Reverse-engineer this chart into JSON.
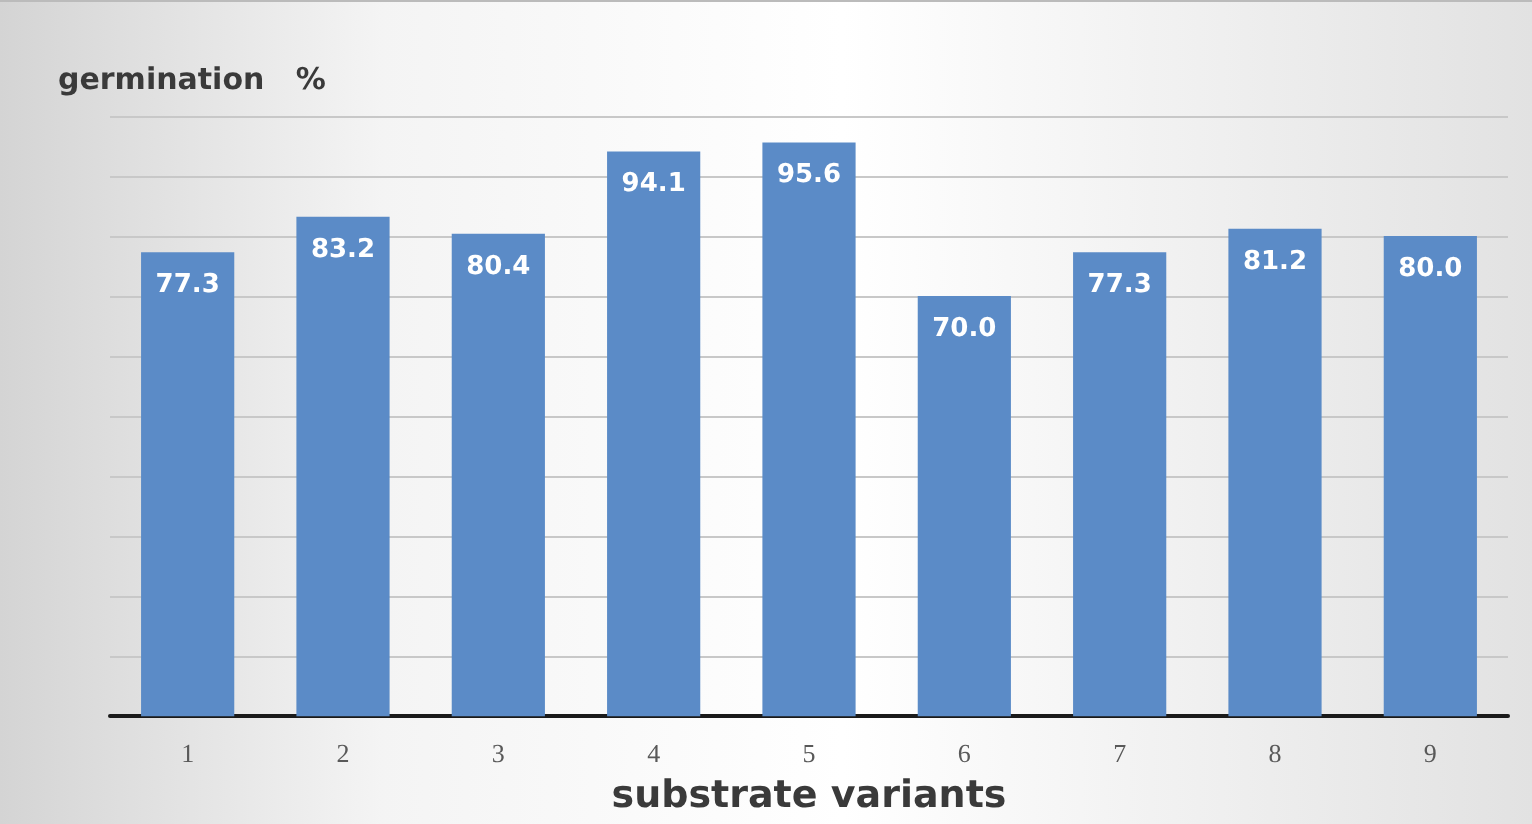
{
  "chart_data": {
    "type": "bar",
    "ylabel": "germination   %",
    "xlabel": "substrate variants",
    "categories": [
      "1",
      "2",
      "3",
      "4",
      "5",
      "6",
      "7",
      "8",
      "9"
    ],
    "values": [
      77.3,
      83.2,
      80.4,
      94.1,
      95.6,
      70.0,
      77.3,
      81.2,
      80.0
    ],
    "color": "#5b8bc7",
    "value_labels": [
      "77.3",
      "83.2",
      "80.4",
      "94.1",
      "95.6",
      "70.0",
      "77.3",
      "81.2",
      "80.0"
    ],
    "ylim": [
      0,
      100
    ],
    "yticks": [
      {
        "value": 0,
        "label": null
      },
      {
        "value": 10,
        "label": null
      },
      {
        "value": 20,
        "label": null
      },
      {
        "value": 30,
        "label": null
      },
      {
        "value": 40,
        "label": null
      },
      {
        "value": 50,
        "label": null
      },
      {
        "value": 60,
        "label": null
      },
      {
        "value": 70,
        "label": null
      },
      {
        "value": 80,
        "label": null
      },
      {
        "value": 90,
        "label": null
      },
      {
        "value": 100,
        "label": null
      }
    ],
    "grid": "y",
    "tick_labels": "x"
  }
}
